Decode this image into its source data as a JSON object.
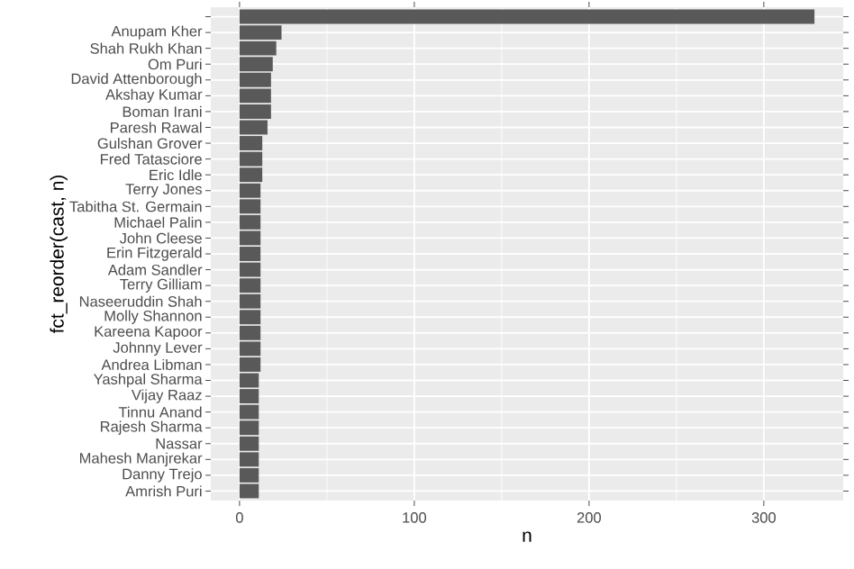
{
  "chart_data": {
    "type": "bar",
    "orientation": "horizontal",
    "xlabel": "n",
    "ylabel": "fct_reorder(cast, n)",
    "categories": [
      null,
      "Anupam Kher",
      "Shah Rukh Khan",
      "Om Puri",
      "David Attenborough",
      "Akshay Kumar",
      "Boman Irani",
      "Paresh Rawal",
      "Gulshan Grover",
      "Fred Tatasciore",
      "Eric Idle",
      "Terry Jones",
      "Tabitha St. Germain",
      "Michael Palin",
      "John Cleese",
      "Erin Fitzgerald",
      "Adam Sandler",
      "Terry Gilliam",
      "Naseeruddin Shah",
      "Molly Shannon",
      "Kareena Kapoor",
      "Johnny Lever",
      "Andrea Libman",
      "Yashpal Sharma",
      "Vijay Raaz",
      "Tinnu Anand",
      "Rajesh Sharma",
      "Nassar",
      "Mahesh Manjrekar",
      "Danny Trejo",
      "Amrish Puri"
    ],
    "values": [
      329,
      24,
      21,
      19,
      18,
      18,
      18,
      16,
      13,
      13,
      13,
      12,
      12,
      12,
      12,
      12,
      12,
      12,
      12,
      12,
      12,
      12,
      12,
      11,
      11,
      11,
      11,
      11,
      11,
      11,
      11
    ],
    "color": "#595959",
    "xlim": [
      -16.45,
      345.45
    ],
    "xticks": [
      0,
      100,
      200,
      300
    ],
    "grid": true
  }
}
